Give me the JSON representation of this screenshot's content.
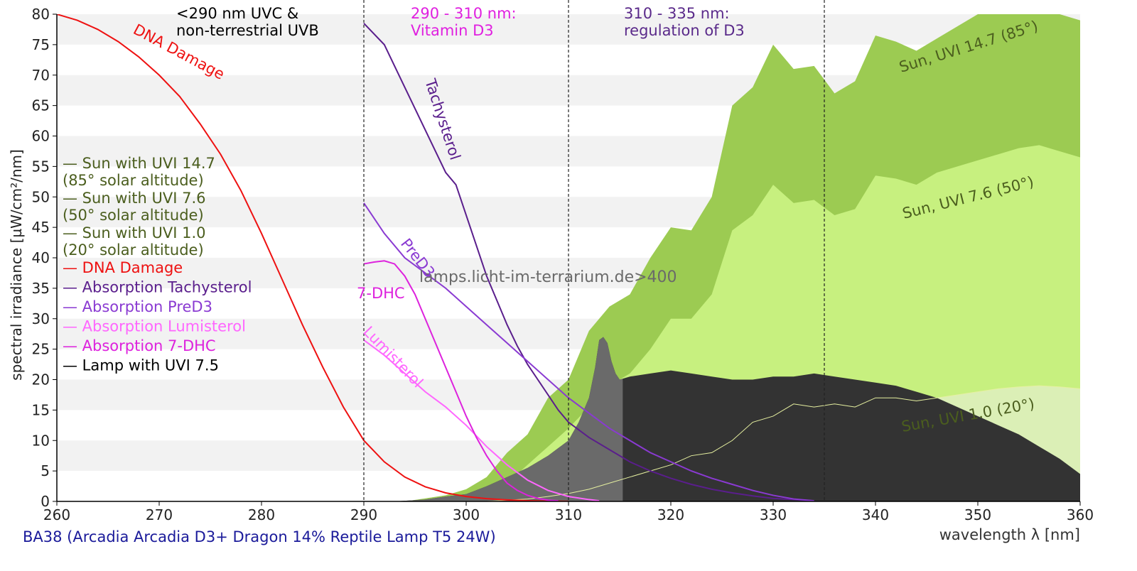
{
  "caption": "BA38 (Arcadia Arcadia D3+ Dragon 14% Reptile Lamp T5 24W)",
  "watermark": "lamps.licht-im-terrarium.de>400",
  "chart_data": {
    "type": "area",
    "xlabel": "wavelength λ [nm]",
    "ylabel": "spectral irradiance [µW/cm²/nm]",
    "xlim": [
      260,
      360
    ],
    "ylim": [
      0,
      80
    ],
    "x_ticks": [
      260,
      270,
      280,
      290,
      300,
      310,
      320,
      330,
      340,
      350,
      360
    ],
    "y_ticks": [
      0,
      5,
      10,
      15,
      20,
      25,
      30,
      35,
      40,
      45,
      50,
      55,
      60,
      65,
      70,
      75,
      80
    ],
    "grid": "horizontal bands",
    "legend_position": "left",
    "vlines": [
      290,
      310,
      335
    ],
    "region_labels": [
      {
        "lines": [
          "<290 nm UVC &",
          "non-terrestrial UVB"
        ],
        "color": "#000000"
      },
      {
        "lines": [
          "290 - 310 nm:",
          "Vitamin D3"
        ],
        "color": "#e020e0"
      },
      {
        "lines": [
          "310 - 335 nm:",
          "regulation of D3"
        ],
        "color": "#5a2a8a"
      }
    ],
    "legend": [
      {
        "lines": [
          "— Sun with UVI 14.7",
          "  (85° solar altitude)"
        ],
        "color": "#4b5e1e"
      },
      {
        "lines": [
          "— Sun with UVI 7.6",
          "  (50° solar altitude)"
        ],
        "color": "#4b5e1e"
      },
      {
        "lines": [
          "— Sun with UVI 1.0",
          "  (20° solar altitude)"
        ],
        "color": "#4b5e1e"
      },
      {
        "lines": [
          "— DNA Damage"
        ],
        "color": "#ee1111"
      },
      {
        "lines": [
          "— Absorption Tachysterol"
        ],
        "color": "#5a1e8c"
      },
      {
        "lines": [
          "— Absorption PreD3"
        ],
        "color": "#8a3ad2"
      },
      {
        "lines": [
          "— Absorption Lumisterol"
        ],
        "color": "#ff66ff"
      },
      {
        "lines": [
          "— Absorption 7-DHC"
        ],
        "color": "#dd22dd"
      },
      {
        "lines": [
          "— Lamp with UVI 7.5"
        ],
        "color": "#000000"
      }
    ],
    "series": [
      {
        "name": "Sun with UVI 14.7",
        "color": "#9ccb52",
        "fill": true,
        "label": "Sun, UVI 14.7 (85°)",
        "label_color": "#4b5e1e",
        "points": [
          [
            294,
            0
          ],
          [
            296,
            0.5
          ],
          [
            298,
            1
          ],
          [
            300,
            2
          ],
          [
            302,
            4
          ],
          [
            304,
            8
          ],
          [
            306,
            11
          ],
          [
            308,
            17
          ],
          [
            310,
            20
          ],
          [
            312,
            28
          ],
          [
            314,
            32
          ],
          [
            316,
            34
          ],
          [
            318,
            40
          ],
          [
            320,
            45
          ],
          [
            322,
            44.5
          ],
          [
            324,
            50
          ],
          [
            326,
            65
          ],
          [
            328,
            68
          ],
          [
            330,
            75
          ],
          [
            332,
            71
          ],
          [
            334,
            71.5
          ],
          [
            336,
            67
          ],
          [
            338,
            69
          ],
          [
            340,
            76.5
          ],
          [
            342,
            75.5
          ],
          [
            344,
            74
          ],
          [
            346,
            76
          ],
          [
            348,
            78
          ],
          [
            350,
            80
          ],
          [
            352,
            81
          ],
          [
            354,
            82
          ],
          [
            356,
            81
          ],
          [
            358,
            80
          ],
          [
            360,
            79
          ]
        ]
      },
      {
        "name": "Sun with UVI 7.6",
        "color": "#c7f07f",
        "fill": true,
        "label": "Sun, UVI 7.6 (50°)",
        "label_color": "#4b5e1e",
        "points": [
          [
            296,
            0
          ],
          [
            298,
            0.3
          ],
          [
            300,
            0.8
          ],
          [
            302,
            1.5
          ],
          [
            304,
            3
          ],
          [
            306,
            6
          ],
          [
            308,
            9
          ],
          [
            310,
            12
          ],
          [
            312,
            15.5
          ],
          [
            314,
            19
          ],
          [
            316,
            21
          ],
          [
            318,
            25
          ],
          [
            320,
            30
          ],
          [
            322,
            30
          ],
          [
            324,
            34
          ],
          [
            326,
            44.5
          ],
          [
            328,
            47
          ],
          [
            330,
            52
          ],
          [
            332,
            49
          ],
          [
            334,
            49.5
          ],
          [
            336,
            47
          ],
          [
            338,
            48
          ],
          [
            340,
            53.5
          ],
          [
            342,
            53
          ],
          [
            344,
            52
          ],
          [
            346,
            54
          ],
          [
            348,
            55
          ],
          [
            350,
            56
          ],
          [
            352,
            57
          ],
          [
            354,
            58
          ],
          [
            356,
            58.5
          ],
          [
            358,
            57.5
          ],
          [
            360,
            56.5
          ]
        ]
      },
      {
        "name": "Sun with UVI 1.0",
        "color": "#dbefb6",
        "fill": true,
        "label": "Sun, UVI 1.0 (20°)",
        "label_color": "#4b5e1e",
        "points": [
          [
            302,
            0
          ],
          [
            304,
            0.2
          ],
          [
            306,
            0.4
          ],
          [
            308,
            0.8
          ],
          [
            310,
            1.3
          ],
          [
            312,
            2
          ],
          [
            314,
            3
          ],
          [
            316,
            4
          ],
          [
            318,
            5
          ],
          [
            320,
            6
          ],
          [
            322,
            7.5
          ],
          [
            324,
            8
          ],
          [
            326,
            10
          ],
          [
            328,
            13
          ],
          [
            330,
            14
          ],
          [
            332,
            16
          ],
          [
            334,
            15.5
          ],
          [
            336,
            16
          ],
          [
            338,
            15.5
          ],
          [
            340,
            17
          ],
          [
            342,
            17
          ],
          [
            344,
            16.5
          ],
          [
            346,
            17
          ],
          [
            348,
            17.5
          ],
          [
            350,
            18
          ],
          [
            352,
            18.5
          ],
          [
            354,
            18.8
          ],
          [
            356,
            19
          ],
          [
            358,
            18.8
          ],
          [
            360,
            18.5
          ]
        ]
      },
      {
        "name": "Lamp with UVI 7.5",
        "color": "#333333",
        "fill": true,
        "label": "",
        "points": [
          [
            293,
            0
          ],
          [
            296,
            0.3
          ],
          [
            298,
            0.8
          ],
          [
            300,
            1.2
          ],
          [
            302,
            2.5
          ],
          [
            304,
            4
          ],
          [
            306,
            5.5
          ],
          [
            308,
            7.5
          ],
          [
            310,
            10
          ],
          [
            311,
            13
          ],
          [
            312,
            17
          ],
          [
            312.6,
            22
          ],
          [
            313,
            26.5
          ],
          [
            313.4,
            27
          ],
          [
            313.8,
            26
          ],
          [
            314.2,
            23
          ],
          [
            314.6,
            21
          ],
          [
            315,
            20
          ],
          [
            316,
            20.5
          ],
          [
            318,
            21
          ],
          [
            320,
            21.5
          ],
          [
            322,
            21
          ],
          [
            324,
            20.5
          ],
          [
            326,
            20
          ],
          [
            328,
            20
          ],
          [
            330,
            20.5
          ],
          [
            332,
            20.5
          ],
          [
            334,
            21
          ],
          [
            336,
            20.5
          ],
          [
            338,
            20
          ],
          [
            340,
            19.5
          ],
          [
            342,
            19
          ],
          [
            344,
            18
          ],
          [
            346,
            17
          ],
          [
            348,
            15.5
          ],
          [
            350,
            14
          ],
          [
            352,
            12.5
          ],
          [
            354,
            11
          ],
          [
            356,
            9
          ],
          [
            358,
            7
          ],
          [
            360,
            4.5
          ]
        ]
      },
      {
        "name": "DNA Damage",
        "color": "#ee1111",
        "fill": false,
        "label": "DNA Damage",
        "label_color": "#ee1111",
        "points": [
          [
            260,
            80
          ],
          [
            262,
            79
          ],
          [
            264,
            77.5
          ],
          [
            266,
            75.5
          ],
          [
            268,
            73
          ],
          [
            270,
            70
          ],
          [
            272,
            66.5
          ],
          [
            274,
            62
          ],
          [
            276,
            57
          ],
          [
            278,
            51
          ],
          [
            280,
            44
          ],
          [
            282,
            36.5
          ],
          [
            284,
            29
          ],
          [
            286,
            22
          ],
          [
            288,
            15.5
          ],
          [
            290,
            10
          ],
          [
            292,
            6.5
          ],
          [
            294,
            4
          ],
          [
            296,
            2.4
          ],
          [
            298,
            1.4
          ],
          [
            300,
            0.8
          ],
          [
            302,
            0.45
          ],
          [
            304,
            0.25
          ],
          [
            306,
            0.12
          ],
          [
            308,
            0.06
          ],
          [
            310,
            0.02
          ]
        ]
      },
      {
        "name": "Absorption Tachysterol",
        "color": "#5a1e8c",
        "fill": false,
        "label": "Tachysterol",
        "label_color": "#5a1e8c",
        "points": [
          [
            290,
            78.5
          ],
          [
            292,
            75
          ],
          [
            294,
            68
          ],
          [
            296,
            61
          ],
          [
            298,
            54
          ],
          [
            299,
            52
          ],
          [
            300,
            47
          ],
          [
            301,
            42
          ],
          [
            302,
            37
          ],
          [
            303,
            33
          ],
          [
            304,
            29
          ],
          [
            305,
            25.5
          ],
          [
            306,
            22.5
          ],
          [
            307,
            20
          ],
          [
            308,
            17.5
          ],
          [
            309,
            15
          ],
          [
            310,
            13
          ],
          [
            312,
            10.5
          ],
          [
            314,
            8.5
          ],
          [
            316,
            6.5
          ],
          [
            318,
            5
          ],
          [
            320,
            3.8
          ],
          [
            322,
            2.8
          ],
          [
            324,
            2
          ],
          [
            326,
            1.4
          ],
          [
            328,
            0.9
          ],
          [
            330,
            0.5
          ],
          [
            332,
            0.3
          ],
          [
            334,
            0.1
          ]
        ]
      },
      {
        "name": "Absorption PreD3",
        "color": "#8a3ad2",
        "fill": false,
        "label": "PreD3",
        "label_color": "#8a3ad2",
        "points": [
          [
            290,
            49
          ],
          [
            292,
            44
          ],
          [
            294,
            40
          ],
          [
            296,
            37.5
          ],
          [
            298,
            35
          ],
          [
            300,
            32
          ],
          [
            302,
            29
          ],
          [
            304,
            26
          ],
          [
            306,
            23
          ],
          [
            308,
            20
          ],
          [
            310,
            17
          ],
          [
            312,
            14.5
          ],
          [
            314,
            12
          ],
          [
            316,
            10
          ],
          [
            318,
            8
          ],
          [
            320,
            6.5
          ],
          [
            322,
            5
          ],
          [
            324,
            3.8
          ],
          [
            326,
            2.8
          ],
          [
            328,
            1.8
          ],
          [
            330,
            1
          ],
          [
            332,
            0.4
          ],
          [
            334,
            0.1
          ]
        ]
      },
      {
        "name": "Absorption Lumisterol",
        "color": "#ff66ff",
        "fill": false,
        "label": "Lumisterol",
        "label_color": "#ff66ff",
        "points": [
          [
            290,
            26.5
          ],
          [
            292,
            24
          ],
          [
            294,
            21
          ],
          [
            296,
            18
          ],
          [
            298,
            15.5
          ],
          [
            300,
            12.5
          ],
          [
            302,
            9
          ],
          [
            304,
            6
          ],
          [
            306,
            3.5
          ],
          [
            308,
            1.8
          ],
          [
            310,
            0.8
          ],
          [
            312,
            0.3
          ],
          [
            313,
            0.1
          ]
        ]
      },
      {
        "name": "Absorption 7-DHC",
        "color": "#dd22dd",
        "fill": false,
        "label": "7-DHC",
        "label_color": "#dd22dd",
        "points": [
          [
            290,
            39
          ],
          [
            291,
            39.3
          ],
          [
            292,
            39.5
          ],
          [
            293,
            39
          ],
          [
            294,
            37
          ],
          [
            295,
            34
          ],
          [
            296,
            30
          ],
          [
            297,
            26
          ],
          [
            298,
            22
          ],
          [
            299,
            18
          ],
          [
            300,
            14
          ],
          [
            301,
            10.5
          ],
          [
            302,
            7.5
          ],
          [
            303,
            5
          ],
          [
            304,
            3
          ],
          [
            305,
            1.8
          ],
          [
            306,
            1
          ],
          [
            307,
            0.5
          ],
          [
            308,
            0.2
          ],
          [
            309,
            0.1
          ]
        ]
      }
    ]
  }
}
